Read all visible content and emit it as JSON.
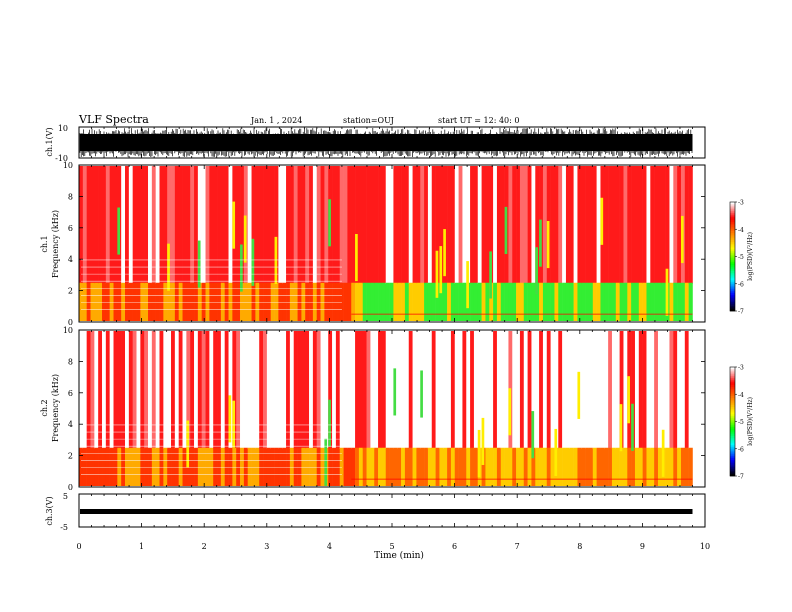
{
  "header": {
    "title": "VLF Spectra",
    "date": "Jan. 1 , 2024",
    "station": "station=OUJ",
    "start_ut": "start UT = 12: 40: 0"
  },
  "chart_data": [
    {
      "type": "line",
      "name": "ch1-waveform",
      "ylabel": "ch.1(V)",
      "ylim": [
        -10,
        10
      ],
      "yticks": [
        "10",
        "-10"
      ],
      "xlim": [
        0,
        10
      ]
    },
    {
      "type": "heatmap",
      "name": "ch1-spectrogram",
      "ylabel": "ch.1\nFrequency (kHz)",
      "ylim": [
        0,
        10
      ],
      "yticks": [
        "0",
        "2",
        "4",
        "6",
        "8",
        "10"
      ],
      "xlim": [
        0,
        10
      ],
      "data_end_min": 9.8,
      "colorbar": {
        "label": "log(PSD)(V²/Hz)",
        "range": [
          -7,
          -3
        ],
        "ticks": [
          "-3",
          "-4",
          "-5",
          "-6",
          "-7"
        ]
      }
    },
    {
      "type": "heatmap",
      "name": "ch2-spectrogram",
      "ylabel": "ch.2\nFrequency (kHz)",
      "ylim": [
        0,
        10
      ],
      "yticks": [
        "0",
        "2",
        "4",
        "6",
        "8",
        "10"
      ],
      "xlim": [
        0,
        10
      ],
      "data_end_min": 9.8,
      "colorbar": {
        "label": "log(PSD)(V²/Hz)",
        "range": [
          -7,
          -3
        ],
        "ticks": [
          "-3",
          "-4",
          "-5",
          "-6",
          "-7"
        ]
      }
    },
    {
      "type": "line",
      "name": "ch3-waveform",
      "ylabel": "ch.3(V)",
      "ylim": [
        -5,
        5
      ],
      "yticks": [
        "5",
        "-5"
      ],
      "xlim": [
        0,
        10
      ],
      "level": -0.5
    }
  ],
  "xaxis": {
    "label": "Time (min)",
    "ticks": [
      "0",
      "1",
      "2",
      "3",
      "4",
      "5",
      "6",
      "7",
      "8",
      "9",
      "10"
    ]
  },
  "colors": {
    "palette": [
      "#ffffff",
      "#ff0000",
      "#ff8000",
      "#ffff00",
      "#00ff00",
      "#00ffff",
      "#0000ff",
      "#000000"
    ]
  }
}
